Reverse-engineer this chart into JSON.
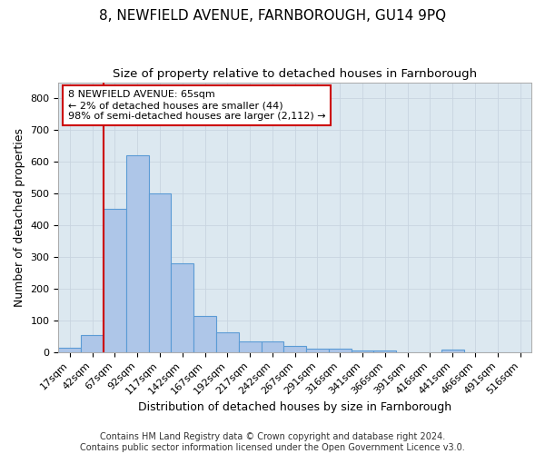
{
  "title": "8, NEWFIELD AVENUE, FARNBOROUGH, GU14 9PQ",
  "subtitle": "Size of property relative to detached houses in Farnborough",
  "xlabel": "Distribution of detached houses by size in Farnborough",
  "ylabel": "Number of detached properties",
  "footnote1": "Contains HM Land Registry data © Crown copyright and database right 2024.",
  "footnote2": "Contains public sector information licensed under the Open Government Licence v3.0.",
  "bin_labels": [
    "17sqm",
    "42sqm",
    "67sqm",
    "92sqm",
    "117sqm",
    "142sqm",
    "167sqm",
    "192sqm",
    "217sqm",
    "242sqm",
    "267sqm",
    "291sqm",
    "316sqm",
    "341sqm",
    "366sqm",
    "391sqm",
    "416sqm",
    "441sqm",
    "466sqm",
    "491sqm",
    "516sqm"
  ],
  "bar_values": [
    13,
    55,
    450,
    620,
    500,
    280,
    115,
    62,
    35,
    35,
    20,
    10,
    10,
    5,
    5,
    0,
    0,
    8,
    0,
    0,
    0
  ],
  "bar_color": "#aec6e8",
  "bar_edge_color": "#5b9bd5",
  "vline_bin_index": 2,
  "vertical_line_color": "#cc0000",
  "annotation_text": "8 NEWFIELD AVENUE: 65sqm\n← 2% of detached houses are smaller (44)\n98% of semi-detached houses are larger (2,112) →",
  "annotation_box_color": "#ffffff",
  "annotation_box_edge_color": "#cc0000",
  "ylim": [
    0,
    850
  ],
  "yticks": [
    0,
    100,
    200,
    300,
    400,
    500,
    600,
    700,
    800
  ],
  "grid_color": "#c8d4e0",
  "bg_color": "#dce8f0",
  "fig_bg_color": "#ffffff",
  "title_fontsize": 11,
  "subtitle_fontsize": 9.5,
  "axis_label_fontsize": 9,
  "tick_fontsize": 8,
  "annotation_fontsize": 8,
  "footnote_fontsize": 7
}
